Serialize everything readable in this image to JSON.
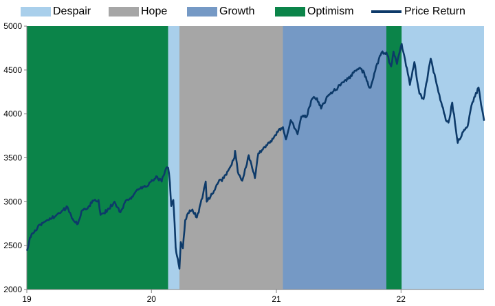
{
  "chart_data": {
    "type": "line",
    "title": "",
    "xlabel": "",
    "ylabel": "",
    "ylim": [
      2000,
      5000
    ],
    "xlim": [
      "2019-01-01",
      "2022-09-01"
    ],
    "x_ticks": [
      {
        "label": "19",
        "date": "2019-01-01"
      },
      {
        "label": "20",
        "date": "2020-01-01"
      },
      {
        "label": "21",
        "date": "2021-01-01"
      },
      {
        "label": "22",
        "date": "2022-01-01"
      }
    ],
    "y_ticks": [
      2000,
      2500,
      3000,
      3500,
      4000,
      4500,
      5000
    ],
    "grid": false,
    "legend_position": "top",
    "regimes": [
      {
        "name": "Optimism",
        "start": "2019-01-01",
        "end": "2020-02-19",
        "color": "#0b8449"
      },
      {
        "name": "Despair",
        "start": "2020-02-19",
        "end": "2020-03-23",
        "color": "#a9cfeb"
      },
      {
        "name": "Hope",
        "start": "2020-03-23",
        "end": "2021-01-20",
        "color": "#a6a6a6"
      },
      {
        "name": "Growth",
        "start": "2021-01-20",
        "end": "2021-11-19",
        "color": "#7599c5"
      },
      {
        "name": "Optimism",
        "start": "2021-11-19",
        "end": "2022-01-03",
        "color": "#0b8449"
      },
      {
        "name": "Despair",
        "start": "2022-01-03",
        "end": "2022-09-01",
        "color": "#a9cfeb"
      }
    ],
    "legend": [
      {
        "label": "Despair",
        "kind": "area",
        "color": "#a9cfeb"
      },
      {
        "label": "Hope",
        "kind": "area",
        "color": "#a6a6a6"
      },
      {
        "label": "Growth",
        "kind": "area",
        "color": "#7599c5"
      },
      {
        "label": "Optimism",
        "kind": "area",
        "color": "#0b8449"
      },
      {
        "label": "Price Return",
        "kind": "line",
        "color": "#0d3a69"
      }
    ],
    "series": [
      {
        "name": "Price Return",
        "color": "#0d3a69",
        "points": [
          [
            "2019-01-02",
            2450
          ],
          [
            "2019-01-10",
            2590
          ],
          [
            "2019-01-20",
            2640
          ],
          [
            "2019-02-01",
            2700
          ],
          [
            "2019-02-15",
            2760
          ],
          [
            "2019-03-01",
            2790
          ],
          [
            "2019-03-15",
            2810
          ],
          [
            "2019-04-01",
            2860
          ],
          [
            "2019-04-15",
            2900
          ],
          [
            "2019-04-30",
            2940
          ],
          [
            "2019-05-13",
            2810
          ],
          [
            "2019-05-31",
            2750
          ],
          [
            "2019-06-10",
            2890
          ],
          [
            "2019-06-30",
            2940
          ],
          [
            "2019-07-15",
            3010
          ],
          [
            "2019-07-30",
            3020
          ],
          [
            "2019-08-05",
            2850
          ],
          [
            "2019-08-15",
            2870
          ],
          [
            "2019-08-30",
            2920
          ],
          [
            "2019-09-15",
            3000
          ],
          [
            "2019-10-02",
            2880
          ],
          [
            "2019-10-15",
            2990
          ],
          [
            "2019-10-31",
            3040
          ],
          [
            "2019-11-15",
            3110
          ],
          [
            "2019-11-29",
            3150
          ],
          [
            "2019-12-15",
            3170
          ],
          [
            "2019-12-31",
            3230
          ],
          [
            "2020-01-15",
            3290
          ],
          [
            "2020-01-31",
            3230
          ],
          [
            "2020-02-10",
            3350
          ],
          [
            "2020-02-19",
            3386
          ],
          [
            "2020-02-24",
            3220
          ],
          [
            "2020-02-28",
            2950
          ],
          [
            "2020-03-05",
            3020
          ],
          [
            "2020-03-09",
            2750
          ],
          [
            "2020-03-12",
            2480
          ],
          [
            "2020-03-16",
            2380
          ],
          [
            "2020-03-23",
            2237
          ],
          [
            "2020-03-27",
            2540
          ],
          [
            "2020-04-02",
            2470
          ],
          [
            "2020-04-09",
            2790
          ],
          [
            "2020-04-17",
            2870
          ],
          [
            "2020-04-30",
            2910
          ],
          [
            "2020-05-13",
            2820
          ],
          [
            "2020-05-29",
            3040
          ],
          [
            "2020-06-08",
            3230
          ],
          [
            "2020-06-11",
            3000
          ],
          [
            "2020-06-30",
            3100
          ],
          [
            "2020-07-15",
            3220
          ],
          [
            "2020-07-31",
            3270
          ],
          [
            "2020-08-15",
            3370
          ],
          [
            "2020-08-31",
            3500
          ],
          [
            "2020-09-02",
            3580
          ],
          [
            "2020-09-10",
            3340
          ],
          [
            "2020-09-23",
            3240
          ],
          [
            "2020-10-12",
            3530
          ],
          [
            "2020-10-30",
            3270
          ],
          [
            "2020-11-09",
            3550
          ],
          [
            "2020-11-30",
            3620
          ],
          [
            "2020-12-15",
            3690
          ],
          [
            "2020-12-31",
            3756
          ],
          [
            "2021-01-08",
            3820
          ],
          [
            "2021-01-20",
            3850
          ],
          [
            "2021-01-29",
            3710
          ],
          [
            "2021-02-12",
            3930
          ],
          [
            "2021-03-04",
            3770
          ],
          [
            "2021-03-15",
            3970
          ],
          [
            "2021-03-31",
            3970
          ],
          [
            "2021-04-15",
            4170
          ],
          [
            "2021-04-30",
            4180
          ],
          [
            "2021-05-12",
            4060
          ],
          [
            "2021-05-31",
            4200
          ],
          [
            "2021-06-15",
            4250
          ],
          [
            "2021-06-30",
            4300
          ],
          [
            "2021-07-15",
            4360
          ],
          [
            "2021-07-30",
            4400
          ],
          [
            "2021-08-15",
            4470
          ],
          [
            "2021-08-31",
            4520
          ],
          [
            "2021-09-15",
            4470
          ],
          [
            "2021-09-30",
            4300
          ],
          [
            "2021-10-04",
            4300
          ],
          [
            "2021-10-20",
            4540
          ],
          [
            "2021-11-05",
            4700
          ],
          [
            "2021-11-19",
            4700
          ],
          [
            "2021-11-30",
            4570
          ],
          [
            "2021-12-03",
            4540
          ],
          [
            "2021-12-10",
            4710
          ],
          [
            "2021-12-20",
            4570
          ],
          [
            "2022-01-03",
            4797
          ],
          [
            "2022-01-10",
            4670
          ],
          [
            "2022-01-24",
            4410
          ],
          [
            "2022-01-27",
            4330
          ],
          [
            "2022-02-09",
            4590
          ],
          [
            "2022-02-24",
            4230
          ],
          [
            "2022-03-08",
            4170
          ],
          [
            "2022-03-29",
            4630
          ],
          [
            "2022-04-12",
            4400
          ],
          [
            "2022-04-29",
            4130
          ],
          [
            "2022-05-12",
            3930
          ],
          [
            "2022-05-20",
            3900
          ],
          [
            "2022-05-31",
            4130
          ],
          [
            "2022-06-16",
            3670
          ],
          [
            "2022-06-30",
            3790
          ],
          [
            "2022-07-15",
            3860
          ],
          [
            "2022-07-29",
            4130
          ],
          [
            "2022-08-16",
            4300
          ],
          [
            "2022-08-26",
            4060
          ],
          [
            "2022-09-01",
            3930
          ]
        ]
      }
    ]
  }
}
